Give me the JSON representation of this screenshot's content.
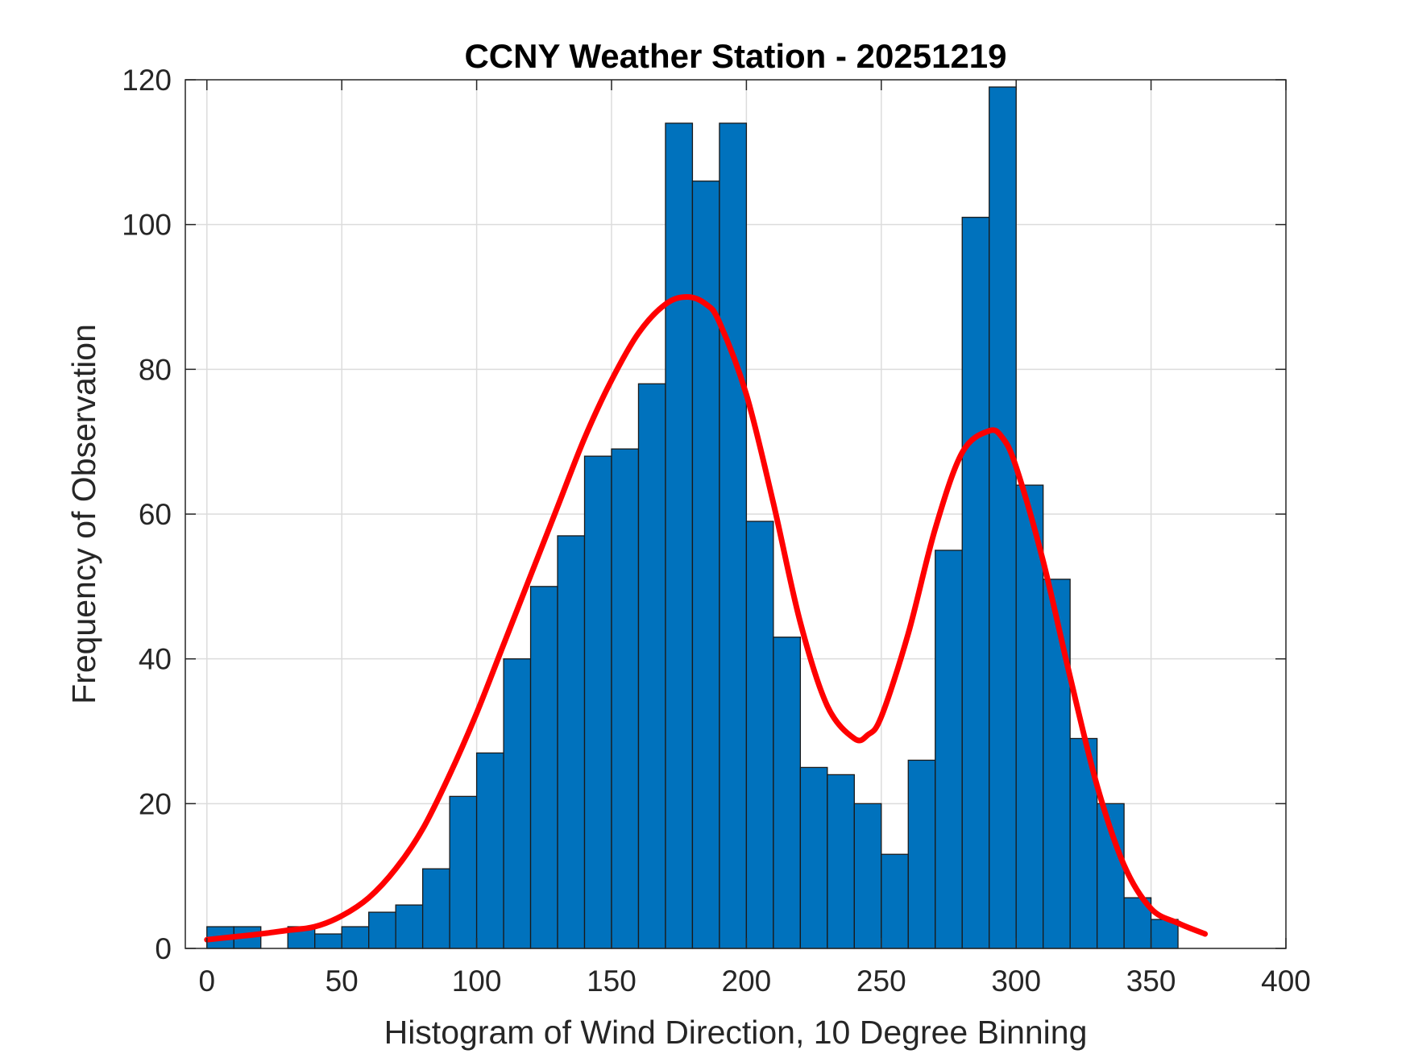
{
  "chart_data": {
    "type": "bar",
    "title": "CCNY Weather Station - 20251219",
    "xlabel": "Histogram of Wind Direction, 10 Degree Binning",
    "ylabel": "Frequency of Observation",
    "xlim": [
      -8,
      400
    ],
    "ylim": [
      0,
      120
    ],
    "grid": true,
    "xticks": [
      0,
      50,
      100,
      150,
      200,
      250,
      300,
      350,
      400
    ],
    "xtick_labels": [
      "0",
      "50",
      "100",
      "150",
      "200",
      "250",
      "300",
      "350",
      "400"
    ],
    "yticks": [
      0,
      20,
      40,
      60,
      80,
      100,
      120
    ],
    "ytick_labels": [
      "0",
      "20",
      "40",
      "60",
      "80",
      "100",
      "120"
    ],
    "bin_width": 10,
    "bin_starts": [
      0,
      10,
      20,
      30,
      40,
      50,
      60,
      70,
      80,
      90,
      100,
      110,
      120,
      130,
      140,
      150,
      160,
      170,
      180,
      190,
      200,
      210,
      220,
      230,
      240,
      250,
      260,
      270,
      280,
      290,
      300,
      310,
      320,
      330,
      340,
      350
    ],
    "values": [
      3,
      3,
      0,
      3,
      2,
      3,
      5,
      6,
      11,
      21,
      27,
      40,
      50,
      57,
      68,
      69,
      78,
      114,
      106,
      114,
      59,
      43,
      25,
      24,
      20,
      13,
      26,
      55,
      101,
      119,
      64,
      51,
      29,
      20,
      7,
      4
    ],
    "bar_color": "#0072BD",
    "fit_curve": {
      "name": "fit",
      "color": "#FF0000",
      "x": [
        0,
        10,
        20,
        30,
        40,
        50,
        60,
        70,
        80,
        90,
        100,
        110,
        120,
        130,
        140,
        150,
        160,
        170,
        178,
        185,
        190,
        200,
        210,
        220,
        230,
        240,
        245,
        250,
        260,
        270,
        280,
        290,
        295,
        300,
        310,
        320,
        330,
        340,
        350,
        360,
        370
      ],
      "y": [
        1.2,
        1.6,
        2.0,
        2.5,
        3.0,
        4.5,
        7.0,
        11.0,
        16.5,
        24.0,
        32.5,
        42.0,
        51.5,
        61.0,
        70.5,
        78.5,
        85.0,
        89.0,
        90.0,
        89.0,
        86.5,
        76.5,
        61.5,
        45.0,
        33.5,
        29.0,
        29.5,
        32.0,
        43.5,
        58.0,
        68.5,
        71.5,
        70.5,
        66.5,
        53.5,
        37.5,
        22.5,
        11.5,
        5.5,
        3.5,
        2.0
      ]
    }
  }
}
